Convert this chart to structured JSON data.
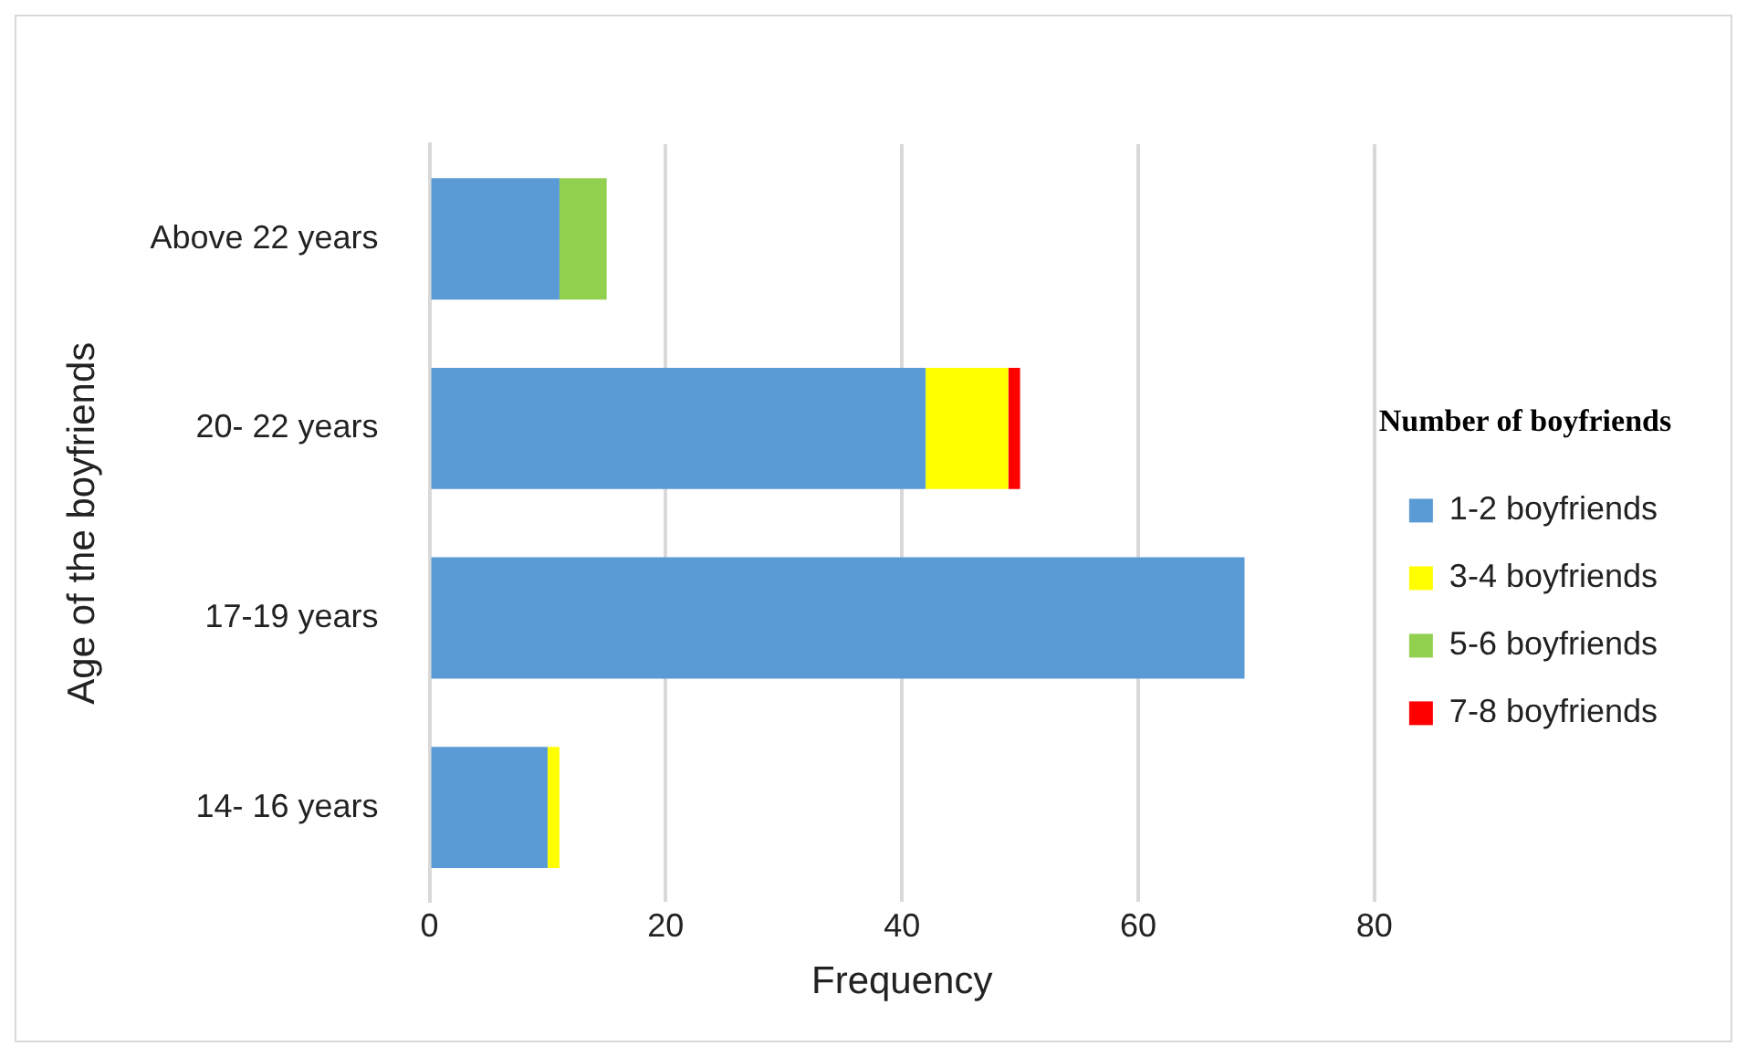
{
  "chart_data": {
    "type": "bar",
    "orientation": "horizontal",
    "stacked": true,
    "xlabel": "Frequency",
    "ylabel": "Age of the boyfriends",
    "legend_title": "Number of boyfriends",
    "categories": [
      "Above 22 years",
      "20- 22 years",
      "17-19 years",
      "14- 16 years"
    ],
    "series": [
      {
        "name": "1-2 boyfriends",
        "color": "#5b9bd5",
        "values": [
          11,
          42,
          69,
          10
        ]
      },
      {
        "name": "3-4 boyfriends",
        "color": "#ffff00",
        "values": [
          null,
          7,
          null,
          1
        ]
      },
      {
        "name": "5-6 boyfriends",
        "color": "#92d050",
        "values": [
          4,
          null,
          null,
          null
        ]
      },
      {
        "name": "7-8 boyfriends",
        "color": "#ff0000",
        "values": [
          null,
          1,
          null,
          null
        ]
      }
    ],
    "xlim": [
      0,
      80
    ],
    "xticks": [
      0,
      20,
      40,
      60,
      80
    ],
    "grid": "x",
    "legend": "right"
  }
}
